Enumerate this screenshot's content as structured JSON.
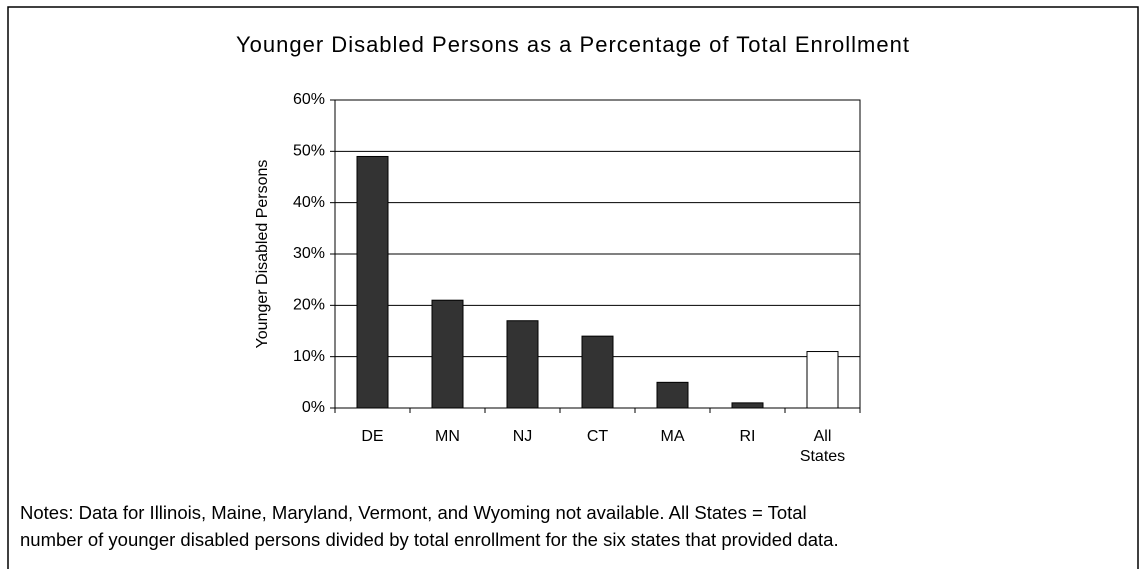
{
  "chart_data": {
    "type": "bar",
    "title": "Younger Disabled Persons as a Percentage of Total Enrollment",
    "y_label": "Younger Disabled Persons",
    "categories": [
      "DE",
      "MN",
      "NJ",
      "CT",
      "MA",
      "RI",
      "All States"
    ],
    "values": [
      49,
      21,
      17,
      14,
      5,
      1,
      11
    ],
    "colors": [
      "#333333",
      "#333333",
      "#333333",
      "#333333",
      "#333333",
      "#333333",
      "#ffffff"
    ],
    "ylim": [
      0,
      60
    ],
    "yticks": [
      {
        "value": 0,
        "label": "0%"
      },
      {
        "value": 10,
        "label": "10%"
      },
      {
        "value": 20,
        "label": "20%"
      },
      {
        "value": 30,
        "label": "30%"
      },
      {
        "value": 40,
        "label": "40%"
      },
      {
        "value": 50,
        "label": "50%"
      },
      {
        "value": 60,
        "label": "60%"
      }
    ],
    "grid": true,
    "notes": [
      "Notes: Data for Illinois, Maine, Maryland, Vermont, and Wyoming not available. All States = Total",
      "number of younger disabled persons divided by total enrollment for the six states that provided data."
    ]
  }
}
